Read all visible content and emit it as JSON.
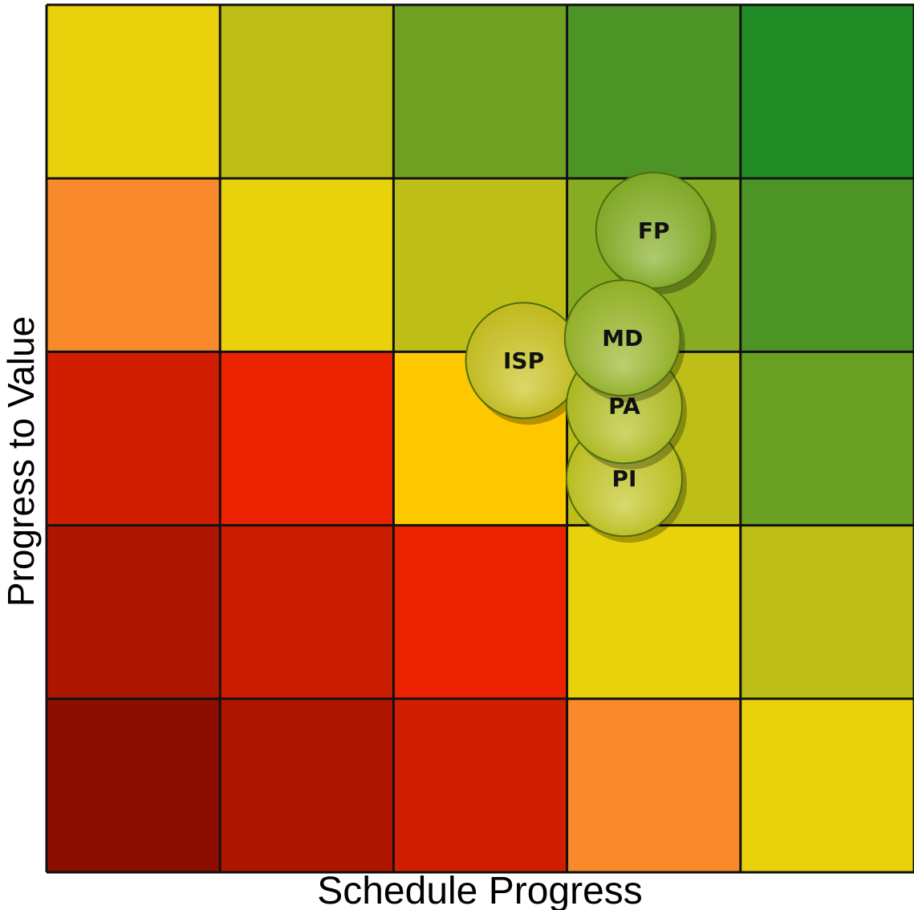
{
  "chart_data": {
    "type": "heatmap",
    "xlabel": "Schedule Progress",
    "ylabel": "Progress to Value",
    "grid": true,
    "cell_colors": [
      [
        "#E9D20C",
        "#BDBE18",
        "#70A022",
        "#4C9426",
        "#218B26"
      ],
      [
        "#F98A2C",
        "#E9D20C",
        "#BDBE18",
        "#88AB24",
        "#4C9426"
      ],
      [
        "#D21E00",
        "#EA2200",
        "#FDC800",
        "#BDBE18",
        "#6BA122"
      ],
      [
        "#AF1600",
        "#CA1C00",
        "#EA2200",
        "#E9D20C",
        "#BDBE18"
      ],
      [
        "#8B0E00",
        "#AF1600",
        "#D21E00",
        "#F98A2C",
        "#E9D20C"
      ]
    ],
    "bubbles": [
      {
        "label": "ISP",
        "x": 2.75,
        "y": 2.95,
        "color": "#C9C11A"
      },
      {
        "label": "PI",
        "x": 3.33,
        "y": 2.27,
        "color": "#C2C41C"
      },
      {
        "label": "PA",
        "x": 3.33,
        "y": 2.69,
        "color": "#B2BE1C"
      },
      {
        "label": "FP",
        "x": 3.5,
        "y": 3.7,
        "color": "#82AE22"
      },
      {
        "label": "MD",
        "x": 3.32,
        "y": 3.08,
        "color": "#96B524"
      }
    ]
  }
}
